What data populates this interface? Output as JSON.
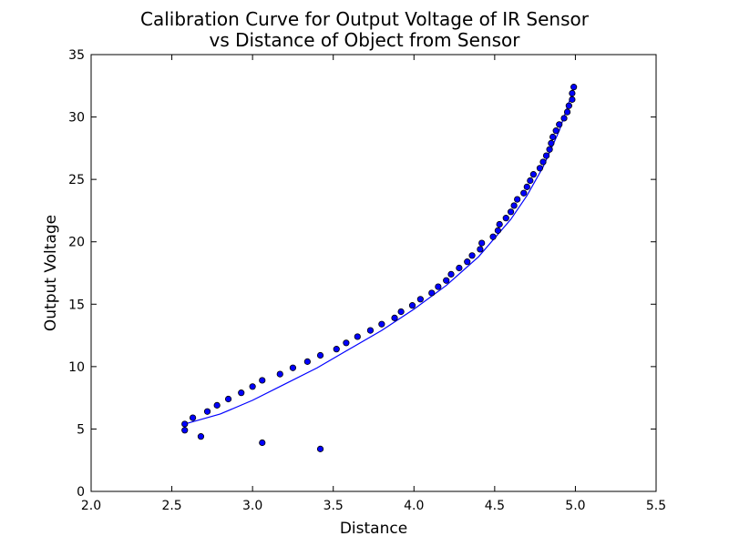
{
  "chart_data": {
    "type": "scatter",
    "title_line1": "Calibration Curve for Output Voltage of IR Sensor",
    "title_line2": "vs Distance of Object from Sensor",
    "xlabel": "Distance",
    "ylabel": "Output Voltage",
    "xlim": [
      2.0,
      5.5
    ],
    "ylim": [
      0,
      35
    ],
    "x_ticks": [
      "2.0",
      "2.5",
      "3.0",
      "3.5",
      "4.0",
      "4.5",
      "5.0",
      "5.5"
    ],
    "y_ticks": [
      "0",
      "5",
      "10",
      "15",
      "20",
      "25",
      "30",
      "35"
    ],
    "grid": false,
    "legend": "none",
    "colors": {
      "points": "#0000ff",
      "fit_line": "#0000ff",
      "axes": "#000000"
    },
    "series": [
      {
        "kind": "scatter",
        "points": [
          [
            2.58,
            4.9
          ],
          [
            2.58,
            5.4
          ],
          [
            2.63,
            5.9
          ],
          [
            2.68,
            4.4
          ],
          [
            2.72,
            6.4
          ],
          [
            2.78,
            6.9
          ],
          [
            2.85,
            7.4
          ],
          [
            2.93,
            7.9
          ],
          [
            3.0,
            8.4
          ],
          [
            3.06,
            8.9
          ],
          [
            3.06,
            3.9
          ],
          [
            3.17,
            9.4
          ],
          [
            3.25,
            9.9
          ],
          [
            3.34,
            10.4
          ],
          [
            3.42,
            10.9
          ],
          [
            3.42,
            3.4
          ],
          [
            3.52,
            11.4
          ],
          [
            3.58,
            11.9
          ],
          [
            3.65,
            12.4
          ],
          [
            3.73,
            12.9
          ],
          [
            3.8,
            13.4
          ],
          [
            3.88,
            13.9
          ],
          [
            3.92,
            14.4
          ],
          [
            3.99,
            14.9
          ],
          [
            4.04,
            15.4
          ],
          [
            4.11,
            15.9
          ],
          [
            4.15,
            16.4
          ],
          [
            4.2,
            16.9
          ],
          [
            4.23,
            17.4
          ],
          [
            4.28,
            17.9
          ],
          [
            4.33,
            18.4
          ],
          [
            4.36,
            18.9
          ],
          [
            4.41,
            19.4
          ],
          [
            4.42,
            19.9
          ],
          [
            4.49,
            20.4
          ],
          [
            4.52,
            20.9
          ],
          [
            4.53,
            21.4
          ],
          [
            4.57,
            21.9
          ],
          [
            4.6,
            22.4
          ],
          [
            4.62,
            22.9
          ],
          [
            4.64,
            23.4
          ],
          [
            4.68,
            23.9
          ],
          [
            4.7,
            24.4
          ],
          [
            4.72,
            24.9
          ],
          [
            4.74,
            25.4
          ],
          [
            4.78,
            25.9
          ],
          [
            4.8,
            26.4
          ],
          [
            4.82,
            26.9
          ],
          [
            4.84,
            27.4
          ],
          [
            4.85,
            27.9
          ],
          [
            4.86,
            28.4
          ],
          [
            4.88,
            28.9
          ],
          [
            4.9,
            29.4
          ],
          [
            4.93,
            29.9
          ],
          [
            4.95,
            30.4
          ],
          [
            4.96,
            30.9
          ],
          [
            4.98,
            31.4
          ],
          [
            4.98,
            31.9
          ],
          [
            4.99,
            32.4
          ]
        ]
      },
      {
        "kind": "line",
        "points": [
          [
            2.58,
            5.4
          ],
          [
            2.8,
            6.2
          ],
          [
            3.0,
            7.3
          ],
          [
            3.2,
            8.6
          ],
          [
            3.4,
            9.9
          ],
          [
            3.6,
            11.4
          ],
          [
            3.8,
            12.9
          ],
          [
            4.0,
            14.6
          ],
          [
            4.2,
            16.5
          ],
          [
            4.4,
            18.8
          ],
          [
            4.6,
            21.8
          ],
          [
            4.7,
            23.7
          ],
          [
            4.8,
            26.0
          ],
          [
            4.9,
            28.9
          ],
          [
            4.99,
            32.3
          ]
        ]
      }
    ]
  }
}
